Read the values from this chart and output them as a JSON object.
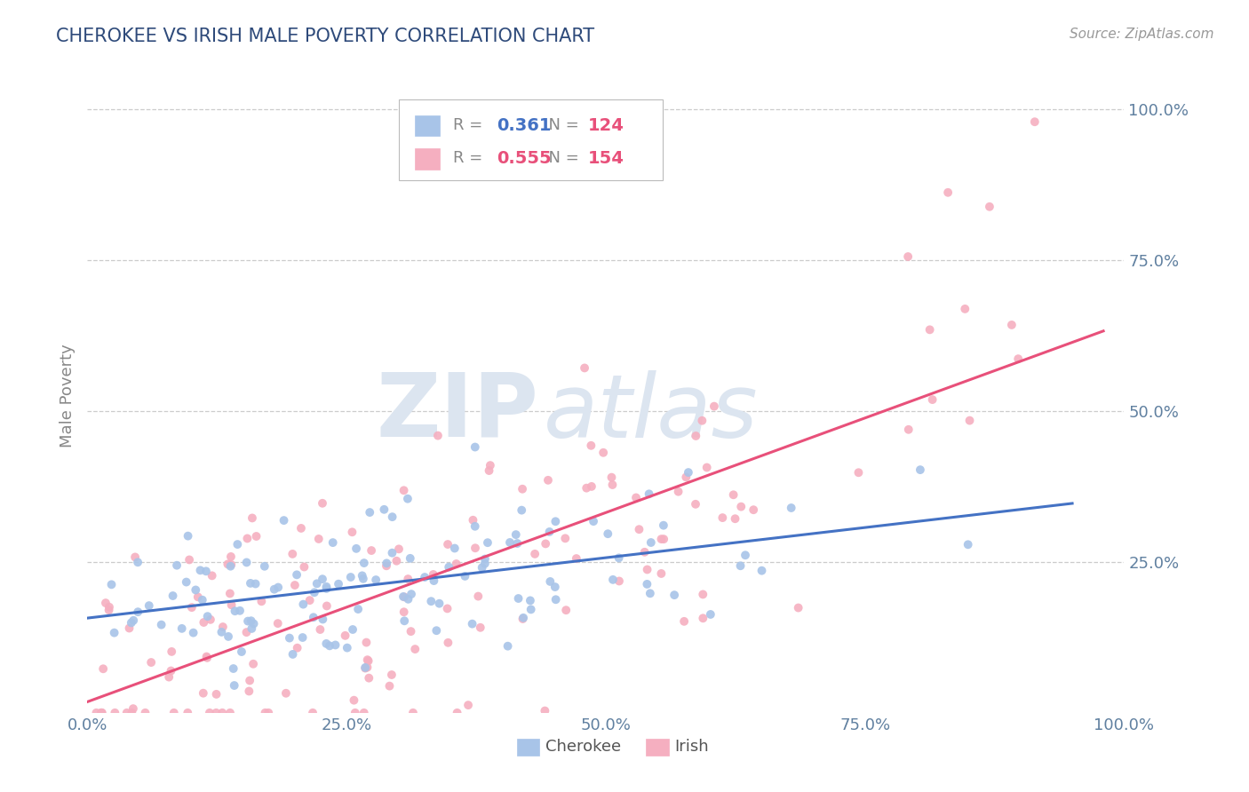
{
  "title": "CHEROKEE VS IRISH MALE POVERTY CORRELATION CHART",
  "source_text": "Source: ZipAtlas.com",
  "ylabel": "Male Poverty",
  "xlim": [
    0.0,
    1.0
  ],
  "ylim": [
    0.0,
    1.05
  ],
  "xtick_labels": [
    "0.0%",
    "25.0%",
    "50.0%",
    "75.0%",
    "100.0%"
  ],
  "xtick_positions": [
    0.0,
    0.25,
    0.5,
    0.75,
    1.0
  ],
  "ytick_labels": [
    "100.0%",
    "75.0%",
    "50.0%",
    "25.0%"
  ],
  "ytick_positions": [
    1.0,
    0.75,
    0.5,
    0.25
  ],
  "cherokee_R": 0.361,
  "cherokee_N": 124,
  "irish_R": 0.555,
  "irish_N": 154,
  "cherokee_color": "#a8c4e8",
  "irish_color": "#f5afc0",
  "cherokee_line_color": "#4472c4",
  "irish_line_color": "#e8507a",
  "background_color": "#ffffff",
  "grid_color": "#cccccc",
  "title_color": "#2e4a7a",
  "watermark_color": "#dce5f0",
  "watermark_zip": "ZIP",
  "watermark_atlas": "atlas",
  "cherokee_seed": 42,
  "irish_seed": 7,
  "tick_color": "#6080a0"
}
